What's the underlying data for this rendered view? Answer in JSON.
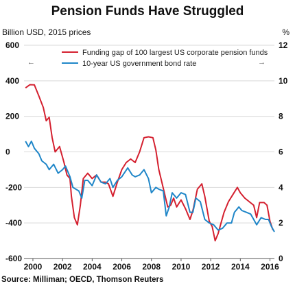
{
  "title": "Pension Funds Have Struggled",
  "left_axis_label": "Billion USD, 2015 prices",
  "right_axis_label": "%",
  "source": "Source: Milliman; OECD, Thomson Reuters",
  "colors": {
    "gap": "#d4202f",
    "rate": "#1f86c8"
  },
  "chart_data": {
    "type": "line",
    "title": "Pension Funds Have Struggled",
    "xlabel": "",
    "ylabel": "Billion USD, 2015 prices",
    "y2label": "%",
    "xlim": [
      1999.4,
      2016.3
    ],
    "ylim": [
      -600,
      600
    ],
    "y2lim": [
      0,
      12
    ],
    "x_ticks": [
      2000,
      2002,
      2004,
      2006,
      2008,
      2010,
      2012,
      2014,
      2016
    ],
    "y_ticks": [
      600,
      400,
      200,
      0,
      -200,
      -400,
      -600
    ],
    "y2_ticks": [
      12,
      10,
      8,
      6,
      4,
      2,
      0
    ],
    "legend_position": "top",
    "legend_arrows": {
      "left": "←",
      "right": "→"
    },
    "series": [
      {
        "name": "Funding gap of 100 largest US corporate pension funds",
        "axis": "left",
        "color": "#d4202f",
        "points": [
          [
            1999.5,
            360
          ],
          [
            1999.8,
            378
          ],
          [
            2000.1,
            377
          ],
          [
            2000.4,
            315
          ],
          [
            2000.7,
            250
          ],
          [
            2000.9,
            175
          ],
          [
            2001.1,
            195
          ],
          [
            2001.3,
            80
          ],
          [
            2001.5,
            0
          ],
          [
            2001.8,
            30
          ],
          [
            2002.1,
            -60
          ],
          [
            2002.3,
            -130
          ],
          [
            2002.5,
            -150
          ],
          [
            2002.6,
            -250
          ],
          [
            2002.8,
            -370
          ],
          [
            2003.0,
            -410
          ],
          [
            2003.2,
            -300
          ],
          [
            2003.4,
            -150
          ],
          [
            2003.7,
            -120
          ],
          [
            2004.0,
            -150
          ],
          [
            2004.3,
            -130
          ],
          [
            2004.6,
            -170
          ],
          [
            2004.9,
            -170
          ],
          [
            2005.1,
            -180
          ],
          [
            2005.4,
            -250
          ],
          [
            2005.7,
            -170
          ],
          [
            2006.0,
            -100
          ],
          [
            2006.3,
            -60
          ],
          [
            2006.6,
            -40
          ],
          [
            2006.9,
            -60
          ],
          [
            2007.2,
            0
          ],
          [
            2007.5,
            80
          ],
          [
            2007.8,
            85
          ],
          [
            2008.1,
            80
          ],
          [
            2008.3,
            10
          ],
          [
            2008.5,
            -100
          ],
          [
            2008.7,
            -170
          ],
          [
            2008.9,
            -240
          ],
          [
            2009.1,
            -310
          ],
          [
            2009.3,
            -300
          ],
          [
            2009.5,
            -260
          ],
          [
            2009.7,
            -310
          ],
          [
            2010.0,
            -270
          ],
          [
            2010.3,
            -320
          ],
          [
            2010.6,
            -380
          ],
          [
            2010.8,
            -330
          ],
          [
            2011.1,
            -210
          ],
          [
            2011.4,
            -180
          ],
          [
            2011.6,
            -250
          ],
          [
            2011.9,
            -390
          ],
          [
            2012.1,
            -420
          ],
          [
            2012.3,
            -500
          ],
          [
            2012.5,
            -460
          ],
          [
            2012.7,
            -400
          ],
          [
            2012.9,
            -340
          ],
          [
            2013.2,
            -280
          ],
          [
            2013.5,
            -240
          ],
          [
            2013.8,
            -200
          ],
          [
            2014.0,
            -230
          ],
          [
            2014.3,
            -260
          ],
          [
            2014.6,
            -280
          ],
          [
            2014.9,
            -300
          ],
          [
            2015.1,
            -370
          ],
          [
            2015.3,
            -285
          ],
          [
            2015.6,
            -285
          ],
          [
            2015.8,
            -300
          ],
          [
            2016.0,
            -390
          ],
          [
            2016.2,
            -440
          ]
        ]
      },
      {
        "name": "10-year US government bond rate",
        "axis": "right",
        "color": "#1f86c8",
        "points": [
          [
            1999.5,
            6.6
          ],
          [
            1999.7,
            6.3
          ],
          [
            1999.9,
            6.6
          ],
          [
            2000.1,
            6.2
          ],
          [
            2000.4,
            5.9
          ],
          [
            2000.6,
            5.5
          ],
          [
            2000.9,
            5.3
          ],
          [
            2001.1,
            5.0
          ],
          [
            2001.4,
            5.3
          ],
          [
            2001.7,
            4.8
          ],
          [
            2002.0,
            5.0
          ],
          [
            2002.2,
            5.2
          ],
          [
            2002.5,
            4.6
          ],
          [
            2002.7,
            4.0
          ],
          [
            2002.9,
            3.9
          ],
          [
            2003.1,
            3.8
          ],
          [
            2003.3,
            3.4
          ],
          [
            2003.5,
            4.4
          ],
          [
            2003.7,
            4.4
          ],
          [
            2004.0,
            4.1
          ],
          [
            2004.3,
            4.7
          ],
          [
            2004.6,
            4.3
          ],
          [
            2004.9,
            4.2
          ],
          [
            2005.2,
            4.5
          ],
          [
            2005.4,
            4.0
          ],
          [
            2005.7,
            4.4
          ],
          [
            2006.0,
            4.6
          ],
          [
            2006.4,
            5.1
          ],
          [
            2006.7,
            4.7
          ],
          [
            2006.9,
            4.6
          ],
          [
            2007.2,
            4.7
          ],
          [
            2007.5,
            5.0
          ],
          [
            2007.8,
            4.5
          ],
          [
            2008.0,
            3.7
          ],
          [
            2008.3,
            4.0
          ],
          [
            2008.5,
            3.9
          ],
          [
            2008.8,
            3.8
          ],
          [
            2009.0,
            2.4
          ],
          [
            2009.2,
            2.9
          ],
          [
            2009.4,
            3.7
          ],
          [
            2009.7,
            3.4
          ],
          [
            2010.0,
            3.7
          ],
          [
            2010.3,
            3.6
          ],
          [
            2010.6,
            2.6
          ],
          [
            2010.8,
            2.6
          ],
          [
            2011.0,
            3.4
          ],
          [
            2011.3,
            3.2
          ],
          [
            2011.6,
            2.2
          ],
          [
            2011.9,
            2.0
          ],
          [
            2012.2,
            1.9
          ],
          [
            2012.5,
            1.6
          ],
          [
            2012.8,
            1.7
          ],
          [
            2013.1,
            2.0
          ],
          [
            2013.4,
            2.0
          ],
          [
            2013.6,
            2.6
          ],
          [
            2013.9,
            2.9
          ],
          [
            2014.1,
            2.7
          ],
          [
            2014.4,
            2.6
          ],
          [
            2014.7,
            2.5
          ],
          [
            2014.9,
            2.2
          ],
          [
            2015.1,
            1.9
          ],
          [
            2015.4,
            2.3
          ],
          [
            2015.7,
            2.2
          ],
          [
            2015.9,
            2.2
          ],
          [
            2016.1,
            1.8
          ],
          [
            2016.3,
            1.5
          ]
        ]
      }
    ]
  }
}
